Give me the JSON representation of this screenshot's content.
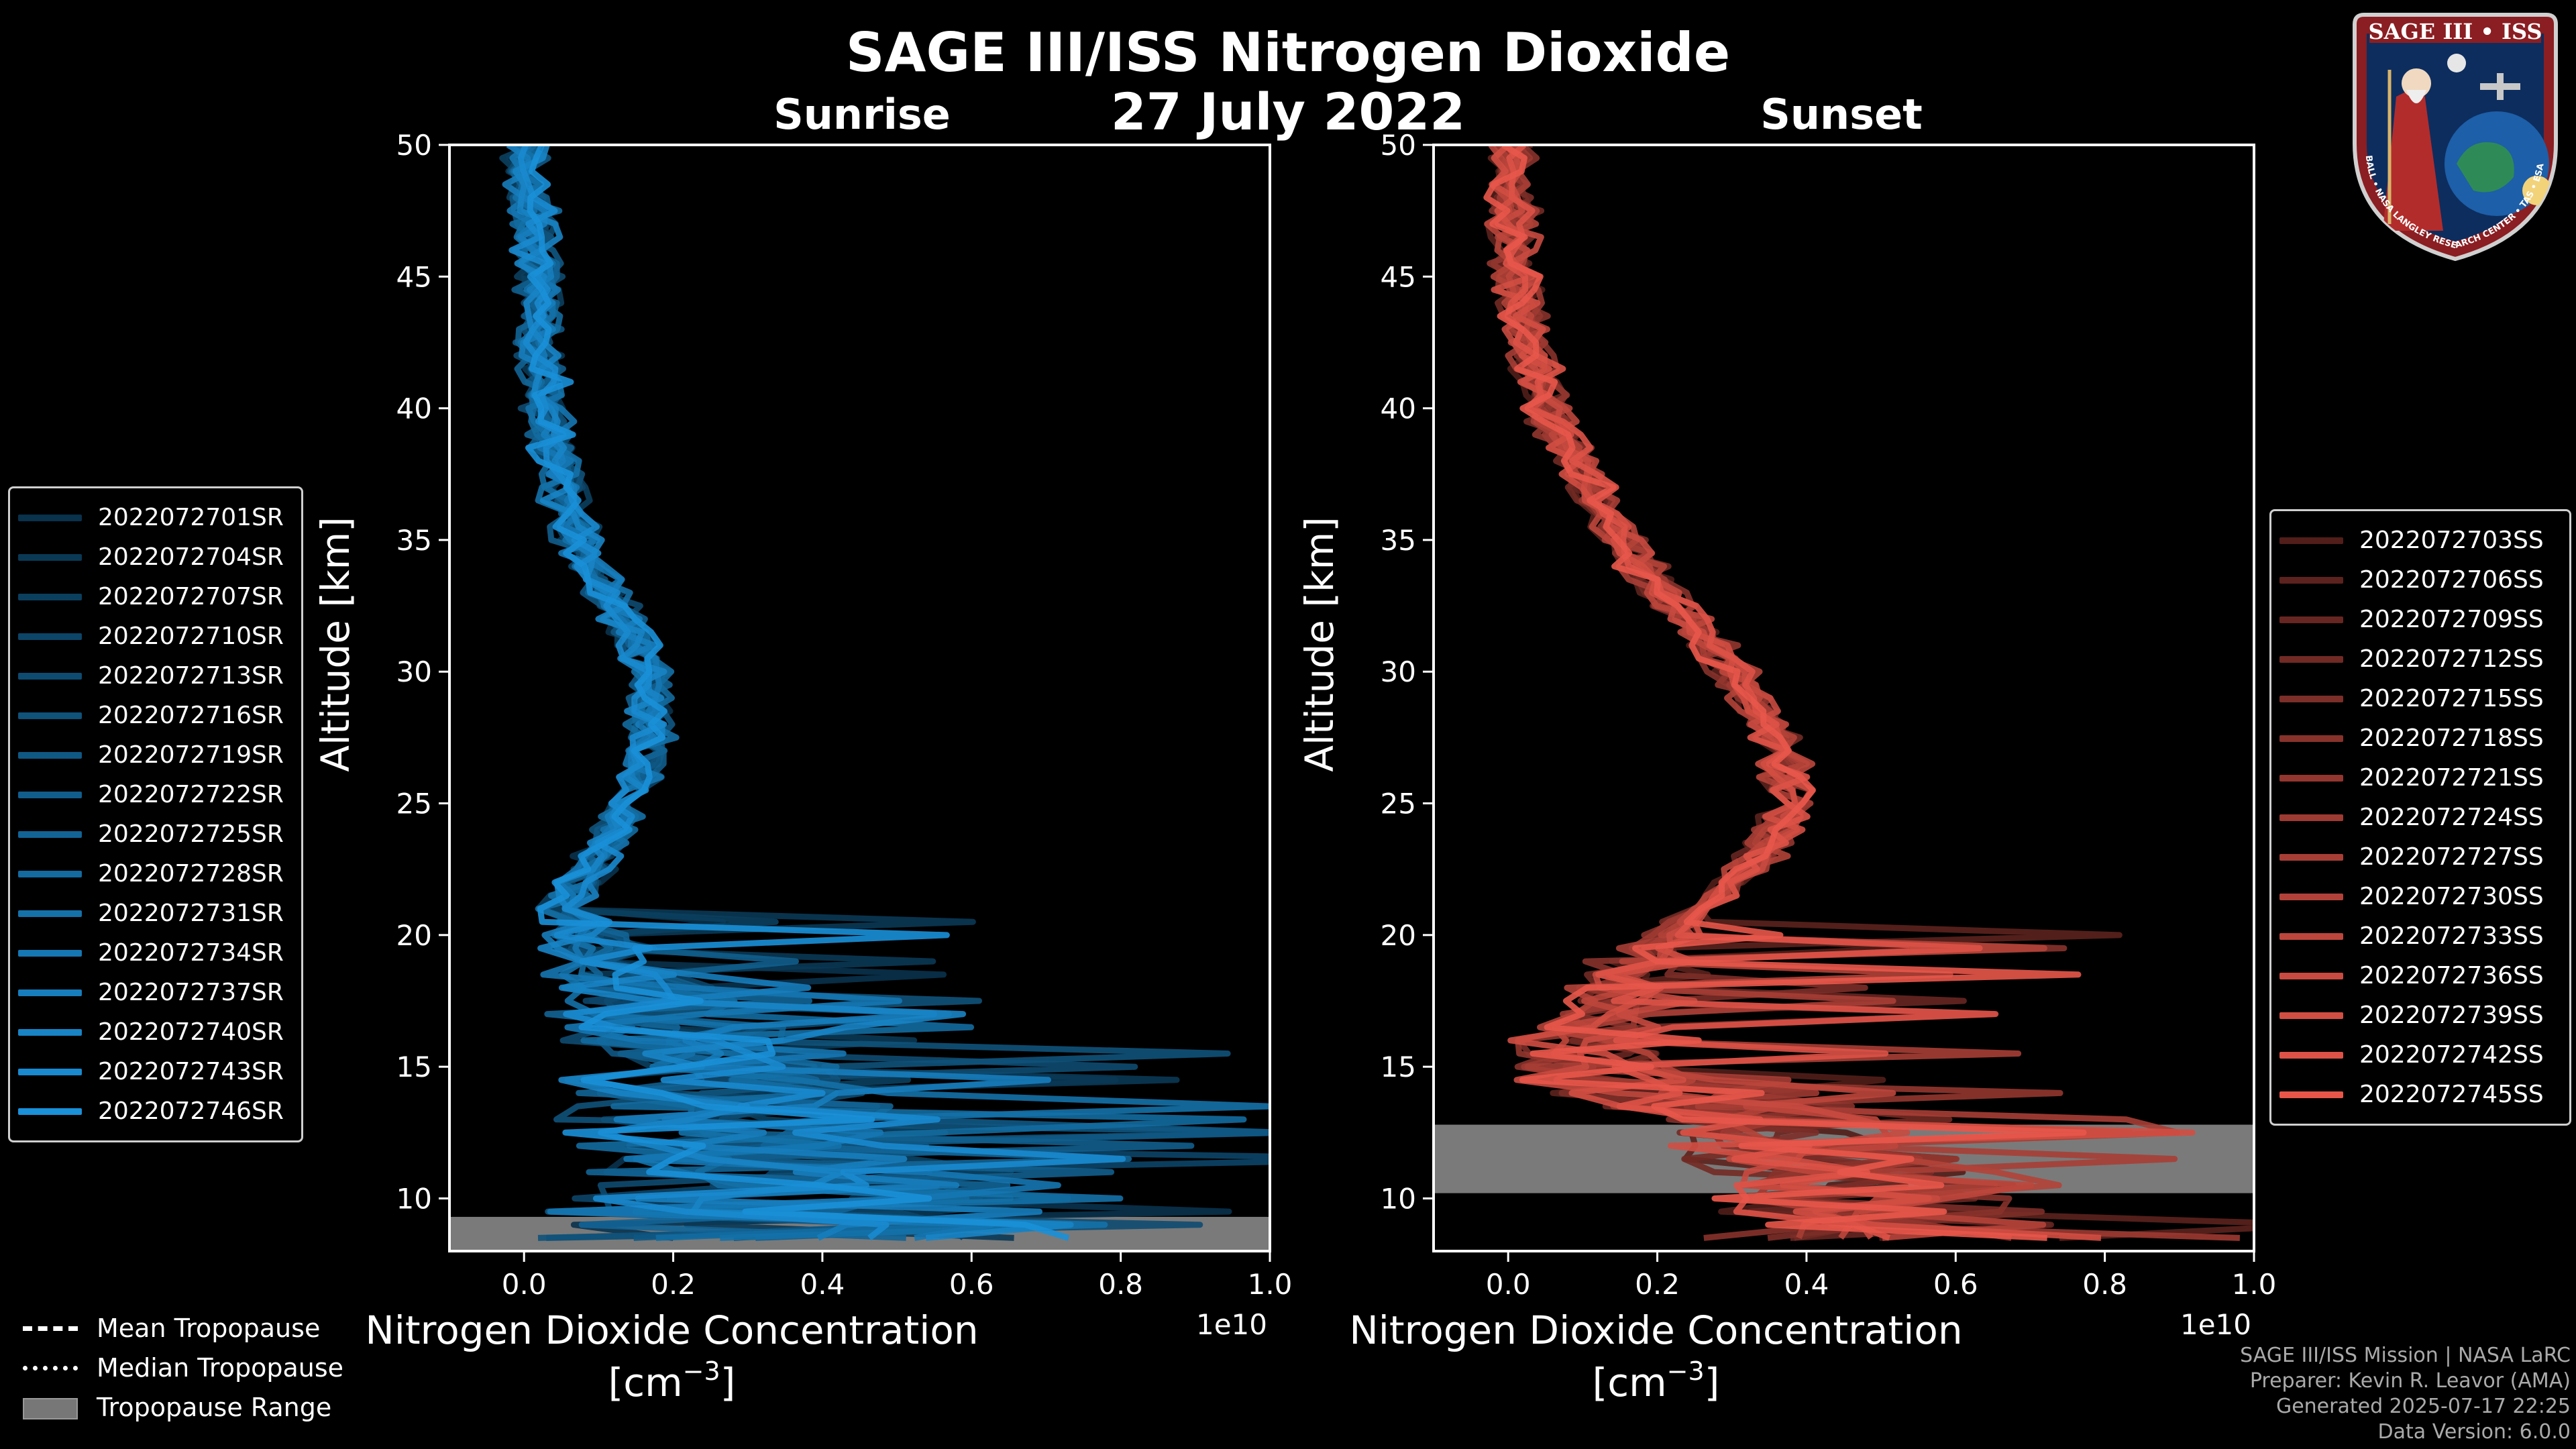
{
  "title": "SAGE III/ISS Nitrogen Dioxide",
  "date": "27 July 2022",
  "colors": {
    "sunrise": "#1a90d8",
    "sunset": "#e8564a",
    "tropopause": "#7a7a7a"
  },
  "chart_data": [
    {
      "type": "line",
      "title": "Sunrise",
      "xlabel": "Nitrogen Dioxide Concentration",
      "xlabel_unit": "[cm",
      "xlabel_unit_sup": "−3",
      "xlabel_unit_end": "]",
      "ylabel": "Altitude [km]",
      "xlim": [
        -0.1,
        1.0
      ],
      "ylim": [
        8,
        50
      ],
      "x_scale_label": "1e10",
      "xticks": [
        0.0,
        0.2,
        0.4,
        0.6,
        0.8,
        1.0
      ],
      "xtick_labels": [
        "0.0",
        "0.2",
        "0.4",
        "0.6",
        "0.8",
        "1.0"
      ],
      "yticks": [
        10,
        15,
        20,
        25,
        30,
        35,
        40,
        45,
        50
      ],
      "ytick_labels": [
        "10",
        "15",
        "20",
        "25",
        "30",
        "35",
        "40",
        "45",
        "50"
      ],
      "tropopause_range": [
        8,
        9.3
      ],
      "profile_altitudes": [
        50,
        45,
        40,
        35,
        30,
        27,
        25,
        23,
        21,
        20,
        19,
        17,
        15,
        13,
        11,
        10
      ],
      "profile_mean": [
        0.0,
        0.02,
        0.03,
        0.07,
        0.17,
        0.17,
        0.14,
        0.1,
        0.05,
        0.08,
        0.12,
        0.18,
        0.25,
        0.3,
        0.35,
        0.38
      ],
      "series": [
        {
          "name": "2022072701SR"
        },
        {
          "name": "2022072704SR"
        },
        {
          "name": "2022072707SR"
        },
        {
          "name": "2022072710SR"
        },
        {
          "name": "2022072713SR"
        },
        {
          "name": "2022072716SR"
        },
        {
          "name": "2022072719SR"
        },
        {
          "name": "2022072722SR"
        },
        {
          "name": "2022072725SR"
        },
        {
          "name": "2022072728SR"
        },
        {
          "name": "2022072731SR"
        },
        {
          "name": "2022072734SR"
        },
        {
          "name": "2022072737SR"
        },
        {
          "name": "2022072740SR"
        },
        {
          "name": "2022072743SR"
        },
        {
          "name": "2022072746SR"
        }
      ]
    },
    {
      "type": "line",
      "title": "Sunset",
      "xlabel": "Nitrogen Dioxide Concentration",
      "xlabel_unit": "[cm",
      "xlabel_unit_sup": "−3",
      "xlabel_unit_end": "]",
      "ylabel": "Altitude [km]",
      "xlim": [
        -0.1,
        1.0
      ],
      "ylim": [
        8,
        50
      ],
      "x_scale_label": "1e10",
      "xticks": [
        0.0,
        0.2,
        0.4,
        0.6,
        0.8,
        1.0
      ],
      "xtick_labels": [
        "0.0",
        "0.2",
        "0.4",
        "0.6",
        "0.8",
        "1.0"
      ],
      "yticks": [
        10,
        15,
        20,
        25,
        30,
        35,
        40,
        45,
        50
      ],
      "ytick_labels": [
        "10",
        "15",
        "20",
        "25",
        "30",
        "35",
        "40",
        "45",
        "50"
      ],
      "tropopause_range": [
        10.2,
        12.8
      ],
      "profile_altitudes": [
        50,
        45,
        40,
        35,
        30,
        27,
        25,
        23,
        21,
        19,
        17,
        15,
        14,
        13,
        12,
        11,
        10
      ],
      "profile_mean": [
        0.0,
        0.01,
        0.05,
        0.15,
        0.3,
        0.37,
        0.38,
        0.34,
        0.26,
        0.17,
        0.13,
        0.1,
        0.2,
        0.35,
        0.4,
        0.45,
        0.5
      ],
      "series": [
        {
          "name": "2022072703SS"
        },
        {
          "name": "2022072706SS"
        },
        {
          "name": "2022072709SS"
        },
        {
          "name": "2022072712SS"
        },
        {
          "name": "2022072715SS"
        },
        {
          "name": "2022072718SS"
        },
        {
          "name": "2022072721SS"
        },
        {
          "name": "2022072724SS"
        },
        {
          "name": "2022072727SS"
        },
        {
          "name": "2022072730SS"
        },
        {
          "name": "2022072733SS"
        },
        {
          "name": "2022072736SS"
        },
        {
          "name": "2022072739SS"
        },
        {
          "name": "2022072742SS"
        },
        {
          "name": "2022072745SS"
        }
      ]
    }
  ],
  "tropopause_legend": [
    {
      "label": "Mean Tropopause",
      "style": "dashed"
    },
    {
      "label": "Median Tropopause",
      "style": "dotted"
    },
    {
      "label": "Tropopause Range",
      "style": "patch"
    }
  ],
  "credits": [
    "SAGE III/ISS Mission | NASA LaRC",
    "Preparer: Kevin R. Leavor (AMA)",
    "Generated 2025-07-17 22:25",
    "Data Version: 6.0.0"
  ],
  "logo": {
    "title": "SAGE III • ISS",
    "ring_text": "BALL • NASA LANGLEY RESEARCH CENTER • TAS • ESA"
  }
}
